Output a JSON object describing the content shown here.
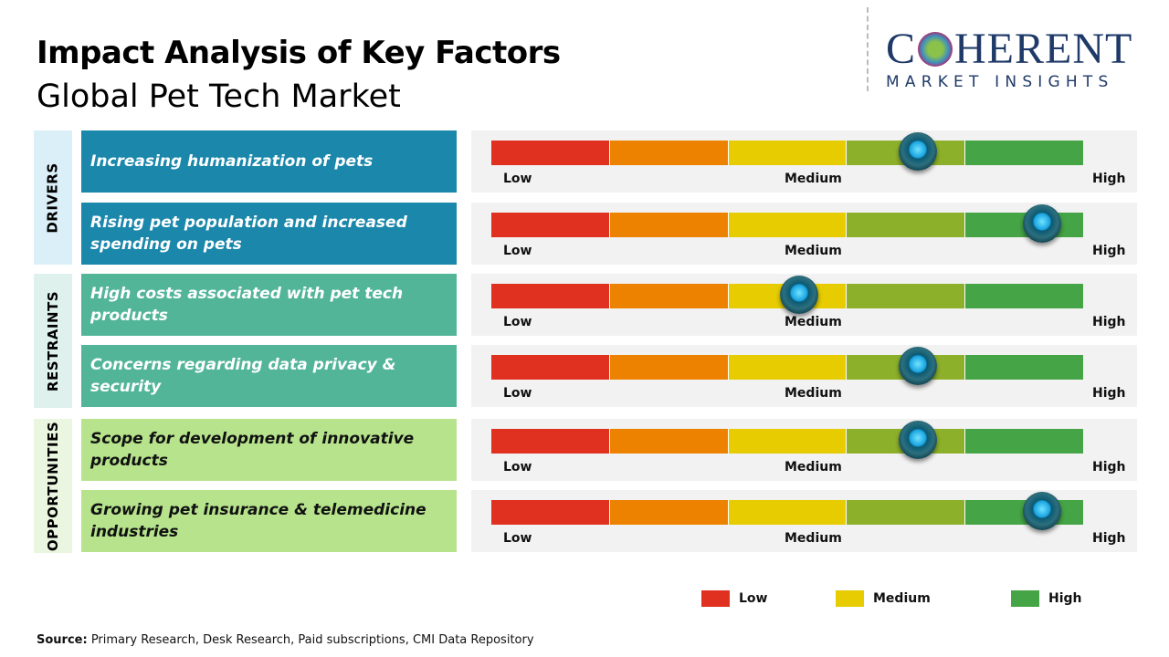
{
  "title": "Impact Analysis of Key Factors",
  "subtitle": "Global Pet Tech Market",
  "logo": {
    "main": "COHERENT",
    "sub": "MARKET INSIGHTS"
  },
  "scale_labels": {
    "low": "Low",
    "medium": "Medium",
    "high": "High"
  },
  "scale_colors": [
    "#e03020",
    "#ec8200",
    "#e6cc00",
    "#8db02a",
    "#45a445"
  ],
  "groups": [
    {
      "label": "DRIVERS",
      "bg": "#dbeff8",
      "box": "#1a87ab",
      "text": "#ffffff"
    },
    {
      "label": "RESTRAINTS",
      "bg": "#dff1ec",
      "box": "#52b598",
      "text": "#ffffff"
    },
    {
      "label": "OPPORTUNITIES",
      "bg": "#eaf6df",
      "box": "#b6e38c",
      "text": "#111111"
    }
  ],
  "factors": [
    {
      "group": 0,
      "text": "Increasing humanization of pets",
      "impact": 0.72
    },
    {
      "group": 0,
      "text": "Rising pet population and increased spending on pets",
      "impact": 0.93
    },
    {
      "group": 1,
      "text": "High costs associated with pet tech products",
      "impact": 0.52
    },
    {
      "group": 1,
      "text": "Concerns regarding data privacy & security",
      "impact": 0.72
    },
    {
      "group": 2,
      "text": "Scope for development of innovative products",
      "impact": 0.72
    },
    {
      "group": 2,
      "text": "Growing pet insurance & telemedicine industries",
      "impact": 0.93
    }
  ],
  "legend": [
    {
      "label": "Low",
      "color": "#e03020"
    },
    {
      "label": "Medium",
      "color": "#e6cc00"
    },
    {
      "label": "High",
      "color": "#45a445"
    }
  ],
  "source": {
    "label": "Source:",
    "text": " Primary Research, Desk Research, Paid subscriptions, CMI Data Repository"
  }
}
